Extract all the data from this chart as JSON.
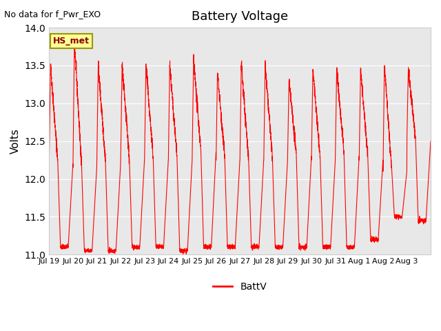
{
  "title": "Battery Voltage",
  "top_left_text": "No data for f_Pwr_EXO",
  "ylabel": "Volts",
  "legend_label": "BattV",
  "line_color": "#ff0000",
  "background_color": "#ffffff",
  "plot_bg_color": "#e8e8e8",
  "ylim": [
    11.0,
    14.0
  ],
  "yticks": [
    11.0,
    11.5,
    12.0,
    12.5,
    13.0,
    13.5,
    14.0
  ],
  "xtick_labels": [
    "Jul 19",
    "Jul 20",
    "Jul 21",
    "Jul 22",
    "Jul 23",
    "Jul 24",
    "Jul 25",
    "Jul 26",
    "Jul 27",
    "Jul 28",
    "Jul 29",
    "Jul 30",
    "Jul 31",
    "Aug 1",
    "Aug 2",
    "Aug 3"
  ],
  "legend_box_color": "#ffff99",
  "legend_box_edge_color": "#999900",
  "hs_met_text": "HS_met",
  "num_cycles": 16,
  "day_peaks": [
    13.5,
    13.82,
    13.5,
    13.5,
    13.5,
    13.5,
    13.55,
    13.4,
    13.5,
    13.5,
    13.3,
    13.45,
    13.45,
    13.45,
    13.5,
    13.45
  ],
  "day_mins": [
    11.1,
    11.05,
    11.05,
    11.1,
    11.1,
    11.05,
    11.1,
    11.1,
    11.1,
    11.1,
    11.1,
    11.1,
    11.1,
    11.2,
    11.5,
    11.45
  ],
  "mid_vals": [
    12.2,
    12.15,
    12.2,
    12.25,
    12.25,
    12.25,
    12.35,
    12.25,
    12.25,
    12.25,
    12.3,
    12.25,
    12.3,
    12.25,
    12.1,
    12.5
  ]
}
